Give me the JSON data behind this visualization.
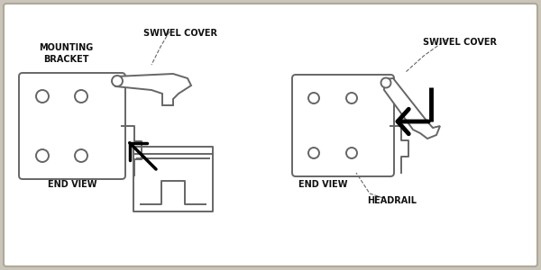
{
  "bg_color": "#cac5ba",
  "panel_color": "#ffffff",
  "line_color": "#666666",
  "text_color": "#111111",
  "label_mounting": "MOUNTING\nBRACKET",
  "label_swivel_left": "SWIVEL COVER",
  "label_endview_left": "END VIEW",
  "label_swivel_right": "SWIVEL COVER",
  "label_endview_right": "END VIEW",
  "label_headrail": "HEADRAIL"
}
